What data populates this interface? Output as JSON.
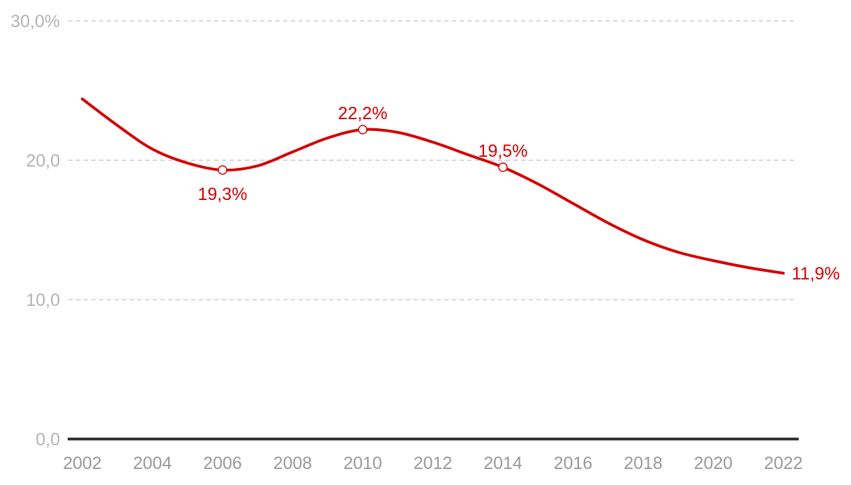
{
  "chart_data": {
    "type": "line",
    "title": "",
    "xlabel": "",
    "ylabel": "",
    "x_ticks": [
      "2002",
      "2004",
      "2006",
      "2008",
      "2010",
      "2012",
      "2014",
      "2016",
      "2018",
      "2020",
      "2022"
    ],
    "y_ticks": [
      {
        "value": 0,
        "label": "0,0"
      },
      {
        "value": 10,
        "label": "10,0"
      },
      {
        "value": 20,
        "label": "20,0"
      },
      {
        "value": 30,
        "label": "30,0%"
      }
    ],
    "xlim": [
      2002,
      2022
    ],
    "ylim": [
      0,
      30
    ],
    "grid": true,
    "legend": "none",
    "series": [
      {
        "color": "#d40000",
        "points": [
          {
            "x": 2002,
            "y": 24.4
          },
          {
            "x": 2003,
            "y": 22.5
          },
          {
            "x": 2004,
            "y": 20.8
          },
          {
            "x": 2005,
            "y": 19.8
          },
          {
            "x": 2006,
            "y": 19.3
          },
          {
            "x": 2007,
            "y": 19.6
          },
          {
            "x": 2008,
            "y": 20.6
          },
          {
            "x": 2009,
            "y": 21.6
          },
          {
            "x": 2010,
            "y": 22.2
          },
          {
            "x": 2011,
            "y": 22.0
          },
          {
            "x": 2012,
            "y": 21.3
          },
          {
            "x": 2013,
            "y": 20.4
          },
          {
            "x": 2014,
            "y": 19.5
          },
          {
            "x": 2015,
            "y": 18.3
          },
          {
            "x": 2016,
            "y": 16.9
          },
          {
            "x": 2017,
            "y": 15.5
          },
          {
            "x": 2018,
            "y": 14.3
          },
          {
            "x": 2019,
            "y": 13.4
          },
          {
            "x": 2020,
            "y": 12.8
          },
          {
            "x": 2021,
            "y": 12.3
          },
          {
            "x": 2022,
            "y": 11.9
          }
        ]
      }
    ],
    "annotations": [
      {
        "x": 2006,
        "y": 19.3,
        "label": "19,3%",
        "marker": true,
        "position": "below"
      },
      {
        "x": 2010,
        "y": 22.2,
        "label": "22,2%",
        "marker": true,
        "position": "above"
      },
      {
        "x": 2014,
        "y": 19.5,
        "label": "19,5%",
        "marker": true,
        "position": "above"
      },
      {
        "x": 2022,
        "y": 11.9,
        "label": "11,9%",
        "marker": false,
        "position": "right"
      }
    ],
    "colors": {
      "line": "#d40000",
      "gridline": "#cccccc",
      "baseline": "#333333",
      "ytick": "#b3b3b3",
      "xtick": "#999999"
    }
  }
}
